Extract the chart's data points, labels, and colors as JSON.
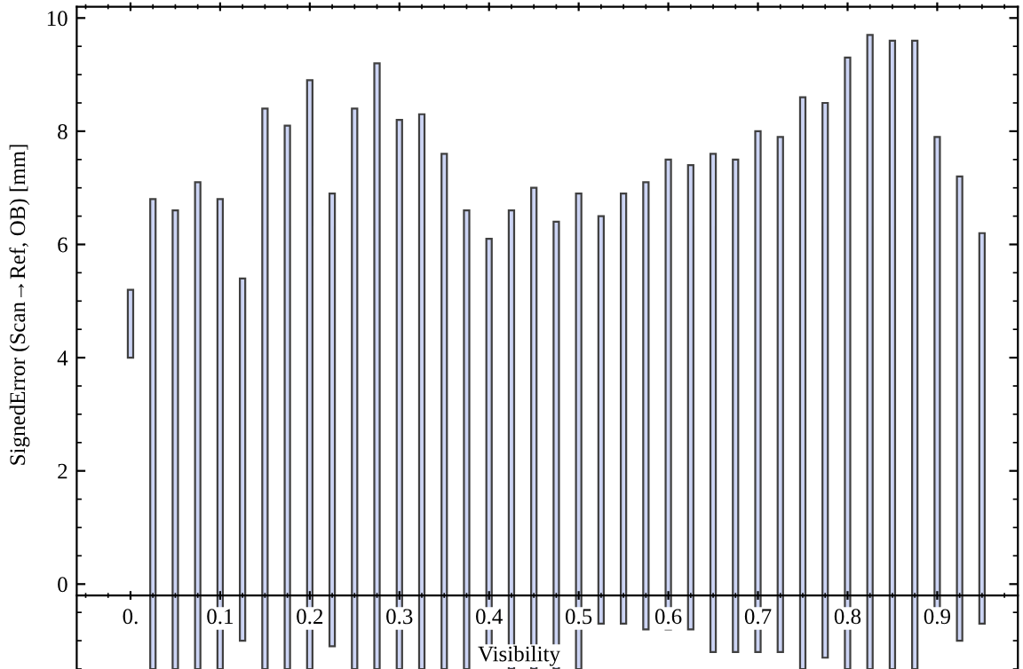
{
  "chart_data": {
    "type": "bar",
    "xlabel": "Visibility",
    "ylabel": "SignedError (Scan→Ref, OB) [mm]",
    "x": [
      0,
      0.025,
      0.05,
      0.075,
      0.1,
      0.125,
      0.15,
      0.175,
      0.2,
      0.225,
      0.25,
      0.275,
      0.3,
      0.325,
      0.35,
      0.375,
      0.4,
      0.425,
      0.45,
      0.475,
      0.5,
      0.525,
      0.55,
      0.575,
      0.6,
      0.625,
      0.65,
      0.675,
      0.7,
      0.725,
      0.75,
      0.775,
      0.8,
      0.825,
      0.85,
      0.875,
      0.9,
      0.925,
      0.95
    ],
    "base": [
      4.0,
      -1.5,
      -1.5,
      -1.5,
      -1.5,
      -1.0,
      -1.5,
      -1.5,
      -1.5,
      -1.1,
      -1.5,
      -1.5,
      -1.5,
      -1.5,
      -1.5,
      -1.5,
      -1.4,
      -1.5,
      -1.5,
      -1.5,
      -1.5,
      -0.7,
      -0.7,
      -0.8,
      -0.8,
      -0.8,
      -1.2,
      -1.2,
      -1.2,
      -1.2,
      -1.5,
      -1.3,
      -1.5,
      -1.5,
      -1.5,
      -1.5,
      -0.5,
      -1.0,
      -0.7
    ],
    "values": [
      1.2,
      8.3,
      8.1,
      8.6,
      8.3,
      6.4,
      9.9,
      9.6,
      10.4,
      8.0,
      9.9,
      10.7,
      9.7,
      9.8,
      9.1,
      8.1,
      7.5,
      8.1,
      8.5,
      7.9,
      8.4,
      7.2,
      7.6,
      7.9,
      8.3,
      8.2,
      8.8,
      8.7,
      9.2,
      9.1,
      10.1,
      9.8,
      10.8,
      11.2,
      11.1,
      11.1,
      8.4,
      8.2,
      6.9
    ],
    "color": "#ccd4f4",
    "xlim": [
      -0.06,
      0.99
    ],
    "ylim": [
      -1.5,
      10.2
    ],
    "xticks": [
      {
        "value": 0,
        "label": "0."
      },
      0.1,
      0.2,
      0.3,
      0.4,
      0.5,
      0.6,
      0.7,
      0.8,
      0.9
    ],
    "yticks": [
      0,
      2,
      4,
      6,
      8,
      10
    ],
    "grid": false
  }
}
